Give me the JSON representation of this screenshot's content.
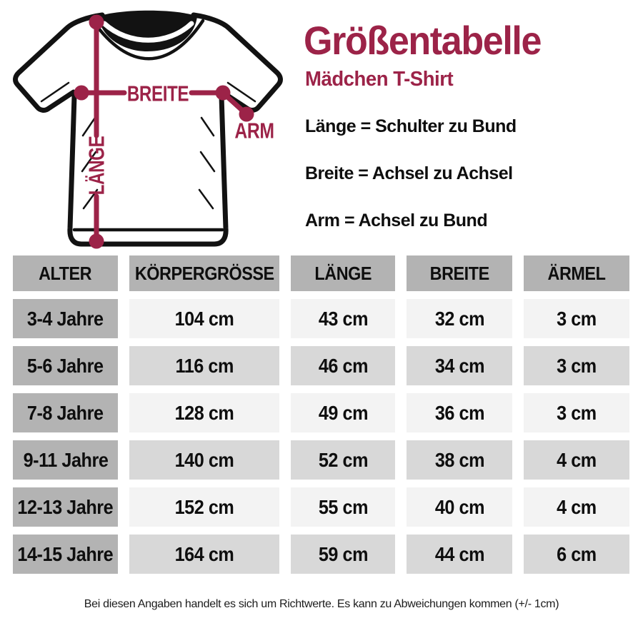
{
  "colors": {
    "accent": "#9c2348",
    "header_gray": "#b3b3b3",
    "row_light": "#f3f3f3",
    "row_dark": "#d8d8d8"
  },
  "header": {
    "title": "Größentabelle",
    "subtitle": "Mädchen T-Shirt"
  },
  "diagram": {
    "labels": {
      "laenge": "LÄNGE",
      "breite": "BREITE",
      "arm": "ARM"
    }
  },
  "definitions": [
    "Länge = Schulter zu Bund",
    "Breite = Achsel zu Achsel",
    "Arm = Achsel zu Bund"
  ],
  "table": {
    "headers": [
      "ALTER",
      "KÖRPERGRÖSSE",
      "LÄNGE",
      "BREITE",
      "ÄRMEL"
    ],
    "rows": [
      [
        "3-4 Jahre",
        "104 cm",
        "43 cm",
        "32 cm",
        "3 cm"
      ],
      [
        "5-6 Jahre",
        "116 cm",
        "46 cm",
        "34 cm",
        "3 cm"
      ],
      [
        "7-8 Jahre",
        "128 cm",
        "49 cm",
        "36 cm",
        "3 cm"
      ],
      [
        "9-11 Jahre",
        "140 cm",
        "52 cm",
        "38 cm",
        "4 cm"
      ],
      [
        "12-13 Jahre",
        "152 cm",
        "55 cm",
        "40 cm",
        "4 cm"
      ],
      [
        "14-15 Jahre",
        "164 cm",
        "59 cm",
        "44 cm",
        "6 cm"
      ]
    ]
  },
  "footer": {
    "note": "Bei diesen Angaben handelt es sich um Richtwerte. Es kann zu Abweichungen kommen (+/- 1cm)"
  }
}
